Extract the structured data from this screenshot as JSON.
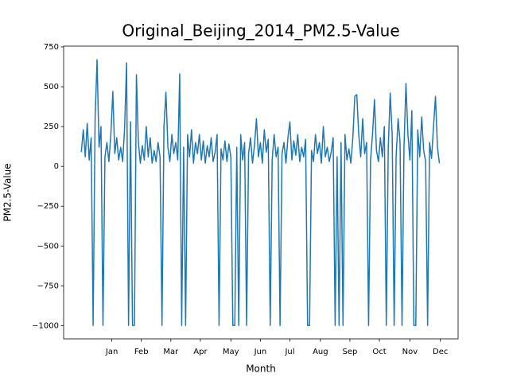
{
  "chart_data": {
    "type": "line",
    "title": "Original_Beijing_2014_PM2.5-Value",
    "x_label": "Month",
    "y_label": "PM2.5-Value",
    "xlim": [
      -18,
      383
    ],
    "ylim": [
      -1083,
      755
    ],
    "xticks": [
      {
        "value": 31,
        "label": "Jan"
      },
      {
        "value": 61,
        "label": "Feb"
      },
      {
        "value": 91,
        "label": "Mar"
      },
      {
        "value": 121,
        "label": "Apr"
      },
      {
        "value": 152,
        "label": "May"
      },
      {
        "value": 182,
        "label": "Jun"
      },
      {
        "value": 212,
        "label": "Jul"
      },
      {
        "value": 243,
        "label": "Aug"
      },
      {
        "value": 273,
        "label": "Sep"
      },
      {
        "value": 303,
        "label": "Oct"
      },
      {
        "value": 334,
        "label": "Nov"
      },
      {
        "value": 365,
        "label": "Dec"
      }
    ],
    "yticks": [
      {
        "value": -1000,
        "label": "−1000"
      },
      {
        "value": -750,
        "label": "−750"
      },
      {
        "value": -500,
        "label": "−500"
      },
      {
        "value": -250,
        "label": "−250"
      },
      0,
      250,
      500,
      750
    ],
    "grid": false,
    "x": [
      0,
      2,
      4,
      6,
      8,
      10,
      12,
      14,
      16,
      18,
      20,
      22,
      24,
      26,
      28,
      30,
      32,
      34,
      36,
      38,
      40,
      42,
      44,
      46,
      48,
      50,
      52,
      54,
      56,
      58,
      60,
      62,
      64,
      66,
      68,
      70,
      72,
      74,
      76,
      78,
      80,
      82,
      84,
      86,
      88,
      90,
      92,
      94,
      96,
      98,
      100,
      102,
      104,
      106,
      108,
      110,
      112,
      114,
      116,
      118,
      120,
      122,
      124,
      126,
      128,
      130,
      132,
      134,
      136,
      138,
      140,
      142,
      144,
      146,
      148,
      150,
      152,
      154,
      156,
      158,
      160,
      162,
      164,
      166,
      168,
      170,
      172,
      174,
      176,
      178,
      180,
      182,
      184,
      186,
      188,
      190,
      192,
      194,
      196,
      198,
      200,
      202,
      204,
      206,
      208,
      210,
      212,
      214,
      216,
      218,
      220,
      222,
      224,
      226,
      228,
      230,
      232,
      234,
      236,
      238,
      240,
      242,
      244,
      246,
      248,
      250,
      252,
      254,
      256,
      258,
      260,
      262,
      264,
      266,
      268,
      270,
      272,
      274,
      276,
      278,
      280,
      282,
      284,
      286,
      288,
      290,
      292,
      294,
      296,
      298,
      300,
      302,
      304,
      306,
      308,
      310,
      312,
      314,
      316,
      318,
      320,
      322,
      324,
      326,
      328,
      330,
      332,
      334,
      336,
      338,
      340,
      342,
      344,
      346,
      348,
      350,
      352,
      354,
      356,
      358,
      360,
      362,
      364
    ],
    "series": [
      {
        "color": "#1f77b4",
        "values": [
          90,
          230,
          60,
          270,
          40,
          180,
          -999,
          300,
          670,
          120,
          250,
          -999,
          60,
          150,
          30,
          200,
          470,
          80,
          180,
          40,
          120,
          30,
          240,
          650,
          -999,
          280,
          -999,
          -999,
          575,
          150,
          20,
          130,
          40,
          250,
          60,
          180,
          20,
          100,
          30,
          150,
          60,
          -999,
          250,
          465,
          120,
          30,
          200,
          80,
          150,
          40,
          580,
          -999,
          120,
          -999,
          200,
          60,
          230,
          20,
          150,
          80,
          200,
          40,
          160,
          20,
          130,
          60,
          180,
          30,
          90,
          200,
          -999,
          110,
          40,
          160,
          30,
          140,
          60,
          -999,
          -999,
          120,
          -999,
          200,
          40,
          150,
          -999,
          80,
          180,
          20,
          130,
          300,
          60,
          150,
          20,
          230,
          90,
          170,
          -999,
          40,
          200,
          60,
          120,
          -999,
          80,
          150,
          20,
          180,
          280,
          40,
          160,
          70,
          200,
          30,
          120,
          60,
          170,
          -999,
          -999,
          100,
          30,
          200,
          80,
          150,
          20,
          250,
          60,
          120,
          30,
          90,
          180,
          -999,
          60,
          -999,
          150,
          -999,
          200,
          40,
          110,
          20,
          180,
          440,
          450,
          200,
          60,
          300,
          80,
          150,
          -999,
          40,
          200,
          420,
          100,
          30,
          180,
          60,
          250,
          -999,
          120,
          460,
          200,
          -999,
          60,
          300,
          150,
          -999,
          120,
          520,
          200,
          40,
          350,
          -999,
          -999,
          230,
          60,
          310,
          100,
          30,
          -999,
          150,
          50,
          250,
          440,
          120,
          20
        ]
      }
    ]
  }
}
